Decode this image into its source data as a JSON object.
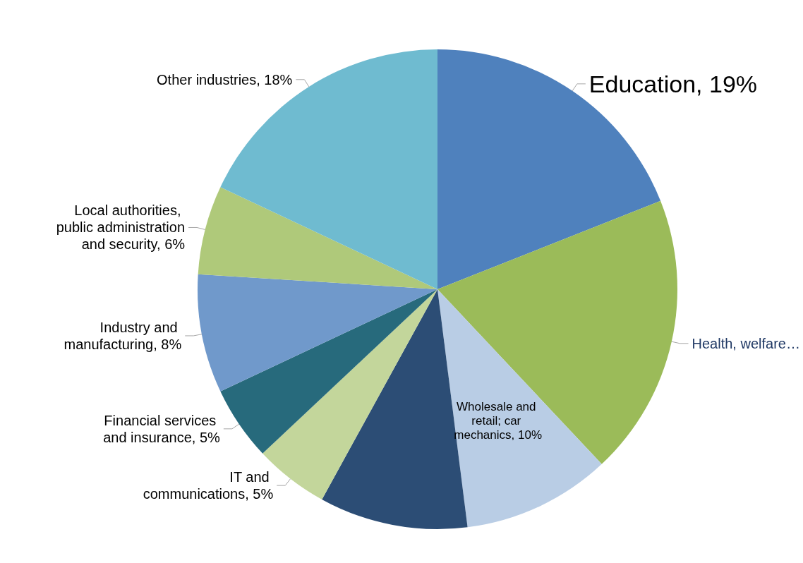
{
  "chart_data": {
    "type": "pie",
    "categories": [
      "Education",
      "Health, welfare…",
      "Wholesale and retail; car mechanics",
      null,
      "IT and communications",
      "Financial services and insurance",
      "Industry and manufacturing",
      "Local authorities, public administration and security",
      "Other industries"
    ],
    "values": [
      19,
      19,
      10,
      10,
      5,
      5,
      8,
      6,
      18
    ],
    "value_labels": [
      "19%",
      null,
      "10%",
      null,
      "5%",
      "5%",
      "8%",
      "6%",
      "18%"
    ],
    "colors": [
      "#4f81bd",
      "#9bbb59",
      "#b9cde5",
      "#2c4d75",
      "#c3d69b",
      "#276a7c",
      "#7099cb",
      "#afc97a",
      "#6fbbd0"
    ]
  }
}
